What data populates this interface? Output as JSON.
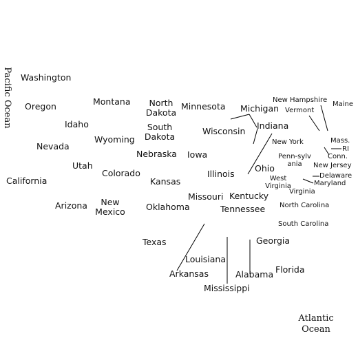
{
  "oceans": {
    "pacific": "Pacific Ocean",
    "atlantic": "Atlantic Ocean"
  },
  "states": {
    "washington": "Washington",
    "oregon": "Oregon",
    "california": "California",
    "nevada": "Nevada",
    "idaho": "Idaho",
    "montana": "Montana",
    "wyoming": "Wyoming",
    "utah": "Utah",
    "arizona": "Arizona",
    "colorado": "Colorado",
    "new_mexico": "New Mexico",
    "north_dakota": "North Dakota",
    "south_dakota": "South Dakota",
    "nebraska": "Nebraska",
    "kansas": "Kansas",
    "oklahoma": "Oklahoma",
    "texas": "Texas",
    "minnesota": "Minnesota",
    "iowa": "Iowa",
    "missouri": "Missouri",
    "arkansas": "Arkansas",
    "louisiana": "Louisiana",
    "wisconsin": "Wisconsin",
    "illinois": "Illinois",
    "michigan": "Michigan",
    "indiana": "Indiana",
    "ohio": "Ohio",
    "kentucky": "Kentucky",
    "tennessee": "Tennessee",
    "mississippi": "Mississippi",
    "alabama": "Alabama",
    "georgia": "Georgia",
    "florida": "Florida",
    "south_carolina": "South Carolina",
    "north_carolina": "North Carolina",
    "virginia": "Virginia",
    "west_virginia": "West Virginia",
    "pennsylvania": "Penn-sylvania",
    "new_york": "New York",
    "vermont": "Vermont",
    "new_hampshire": "New Hampshire",
    "maine": "Maine",
    "massachusetts": "Mass.",
    "rhode_island": "RI",
    "connecticut": "Conn.",
    "new_jersey": "New Jersey",
    "delaware": "Delaware",
    "maryland": "Maryland"
  }
}
